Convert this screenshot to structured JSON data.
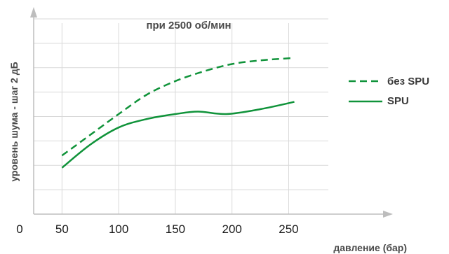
{
  "chart_data": {
    "type": "line",
    "title": "при 2500 об/мин",
    "xlabel": "давление (бар)",
    "ylabel": "уровень шума - шаг 2 дБ",
    "x_ticks": [
      "0",
      "50",
      "100",
      "150",
      "200",
      "250"
    ],
    "xlim": [
      25,
      285
    ],
    "ylim": [
      0,
      16
    ],
    "grid": true,
    "legend_position": "right",
    "colors": {
      "series": "#10933a",
      "axis": "#bdbdbd",
      "grid": "#d9d9d9"
    },
    "series": [
      {
        "name": "без SPU",
        "style": "dashed",
        "x": [
          50,
          75,
          100,
          125,
          150,
          175,
          200,
          225,
          255
        ],
        "y": [
          4.8,
          6.5,
          8.2,
          9.8,
          10.9,
          11.7,
          12.3,
          12.6,
          12.8
        ]
      },
      {
        "name": "SPU",
        "style": "solid",
        "x": [
          50,
          75,
          100,
          125,
          150,
          170,
          195,
          225,
          255
        ],
        "y": [
          3.8,
          5.7,
          7.1,
          7.8,
          8.2,
          8.4,
          8.2,
          8.6,
          9.2
        ]
      }
    ]
  }
}
